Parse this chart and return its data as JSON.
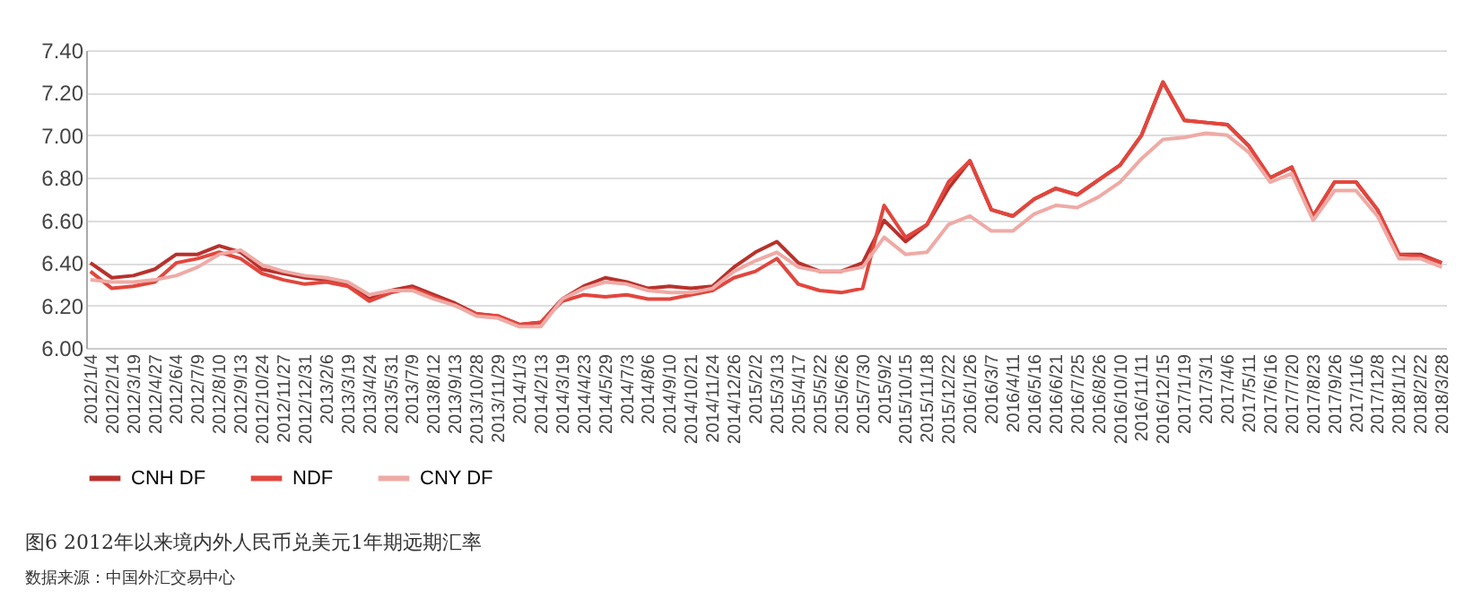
{
  "chart_data": {
    "type": "line",
    "title": "图6  2012年以来境内外人民币兑美元1年期远期汇率",
    "annotations": [
      "数据来源：中国外汇交易中心"
    ],
    "categories": [
      "2012/1/4",
      "2012/2/14",
      "2012/3/19",
      "2012/4/27",
      "2012/6/4",
      "2012/7/9",
      "2012/8/10",
      "2012/9/13",
      "2012/10/24",
      "2012/11/27",
      "2012/12/31",
      "2013/2/6",
      "2013/3/19",
      "2013/4/24",
      "2013/5/31",
      "2013/7/9",
      "2013/8/12",
      "2013/9/13",
      "2013/10/28",
      "2013/11/29",
      "2014/1/3",
      "2014/2/13",
      "2014/3/19",
      "2014/4/23",
      "2014/5/29",
      "2014/7/3",
      "2014/8/6",
      "2014/9/10",
      "2014/10/21",
      "2014/11/24",
      "2014/12/26",
      "2015/2/2",
      "2015/3/13",
      "2015/4/17",
      "2015/5/22",
      "2015/6/26",
      "2015/7/30",
      "2015/9/2",
      "2015/10/15",
      "2015/11/18",
      "2015/12/22",
      "2016/1/26",
      "2016/3/7",
      "2016/4/11",
      "2016/5/16",
      "2016/6/21",
      "2016/7/25",
      "2016/8/26",
      "2016/10/10",
      "2016/11/11",
      "2016/12/15",
      "2017/1/19",
      "2017/3/1",
      "2017/4/6",
      "2017/5/11",
      "2017/6/16",
      "2017/7/20",
      "2017/8/23",
      "2017/9/26",
      "2017/11/6",
      "2017/12/8",
      "2018/1/12",
      "2018/2/22",
      "2018/3/28"
    ],
    "series": [
      {
        "name": "CNH DF",
        "color": "#b8312c",
        "values": [
          6.4,
          6.33,
          6.34,
          6.37,
          6.44,
          6.44,
          6.48,
          6.45,
          6.37,
          6.35,
          6.33,
          6.32,
          6.3,
          6.23,
          6.27,
          6.29,
          6.25,
          6.21,
          6.16,
          6.15,
          6.11,
          6.12,
          6.23,
          6.29,
          6.33,
          6.31,
          6.28,
          6.29,
          6.28,
          6.29,
          6.38,
          6.45,
          6.5,
          6.4,
          6.36,
          6.36,
          6.4,
          6.6,
          6.5,
          6.58,
          6.75,
          6.88,
          6.65,
          6.62,
          6.7,
          6.75,
          6.72,
          6.79,
          6.86,
          7.0,
          7.25,
          7.07,
          7.06,
          7.05,
          6.95,
          6.8,
          6.85,
          6.62,
          6.78,
          6.78,
          6.65,
          6.44,
          6.44,
          6.4
        ]
      },
      {
        "name": "NDF",
        "color": "#e2463d",
        "values": [
          6.36,
          6.28,
          6.29,
          6.31,
          6.4,
          6.42,
          6.45,
          6.42,
          6.35,
          6.32,
          6.3,
          6.31,
          6.29,
          6.22,
          6.26,
          6.28,
          6.24,
          6.2,
          6.16,
          6.15,
          6.11,
          6.12,
          6.22,
          6.25,
          6.24,
          6.25,
          6.23,
          6.23,
          6.25,
          6.27,
          6.33,
          6.36,
          6.42,
          6.3,
          6.27,
          6.26,
          6.28,
          6.67,
          6.52,
          6.58,
          6.78,
          6.88,
          6.65,
          6.62,
          6.7,
          6.75,
          6.72,
          6.79,
          6.86,
          7.0,
          7.25,
          7.07,
          7.06,
          7.05,
          6.95,
          6.8,
          6.85,
          6.62,
          6.78,
          6.78,
          6.65,
          6.44,
          6.43,
          6.4
        ]
      },
      {
        "name": "CNY DF",
        "color": "#efaaa5",
        "values": [
          6.32,
          6.31,
          6.31,
          6.32,
          6.34,
          6.38,
          6.44,
          6.46,
          6.39,
          6.36,
          6.34,
          6.33,
          6.31,
          6.25,
          6.27,
          6.27,
          6.23,
          6.2,
          6.15,
          6.14,
          6.1,
          6.1,
          6.23,
          6.28,
          6.31,
          6.3,
          6.27,
          6.26,
          6.26,
          6.28,
          6.36,
          6.41,
          6.45,
          6.38,
          6.36,
          6.36,
          6.38,
          6.52,
          6.44,
          6.45,
          6.58,
          6.62,
          6.55,
          6.55,
          6.63,
          6.67,
          6.66,
          6.71,
          6.78,
          6.89,
          6.98,
          6.99,
          7.01,
          7.0,
          6.92,
          6.78,
          6.82,
          6.6,
          6.74,
          6.74,
          6.62,
          6.42,
          6.42,
          6.38
        ]
      }
    ],
    "ylim": [
      6.0,
      7.4
    ],
    "yticks": [
      {
        "value": 6.0,
        "label": "6.00"
      },
      {
        "value": 6.2,
        "label": "6.20"
      },
      {
        "value": 6.4,
        "label": "6.40"
      },
      {
        "value": 6.6,
        "label": "6.60"
      },
      {
        "value": 6.8,
        "label": "6.80"
      },
      {
        "value": 7.0,
        "label": "7.00"
      },
      {
        "value": 7.2,
        "label": "7.20"
      },
      {
        "value": 7.4,
        "label": "7.40"
      }
    ],
    "grid": "y",
    "legend": "bottom"
  }
}
